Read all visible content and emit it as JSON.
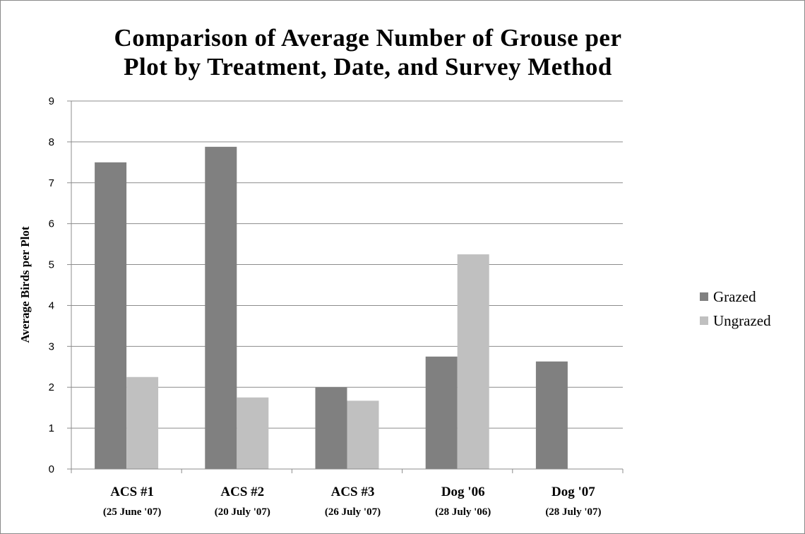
{
  "chart_data": {
    "type": "bar",
    "title_lines": [
      "Comparison of Average Number of Grouse per",
      "Plot by Treatment, Date, and Survey Method"
    ],
    "ylabel": "Average Birds per Plot",
    "xlabel": "",
    "ylim": [
      0,
      9
    ],
    "yticks": [
      "0",
      "1",
      "2",
      "3",
      "4",
      "5",
      "6",
      "7",
      "8",
      "9"
    ],
    "grid": true,
    "legend_position": "right",
    "categories": [
      "ACS #1",
      "ACS #2",
      "ACS #3",
      "Dog '06",
      "Dog '07"
    ],
    "category_dates": [
      "(25 June '07)",
      "(20 July '07)",
      "(26 July '07)",
      "(28 July '06)",
      "(28 July '07)"
    ],
    "series": [
      {
        "name": "Grazed",
        "color": "#808080",
        "values": [
          7.5,
          7.88,
          2.0,
          2.75,
          2.63
        ]
      },
      {
        "name": "Ungrazed",
        "color": "#c0c0c0",
        "values": [
          2.25,
          1.75,
          1.67,
          5.25,
          null
        ]
      }
    ]
  }
}
